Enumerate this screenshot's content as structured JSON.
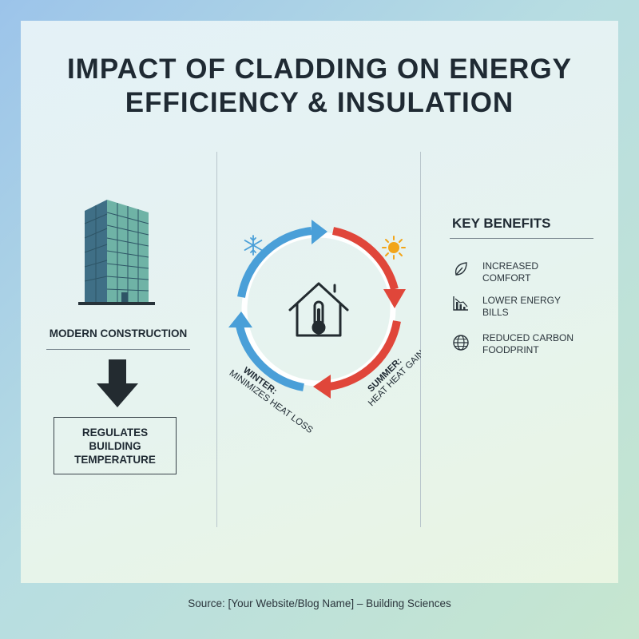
{
  "title": {
    "line1": "IMPACT OF CLADDING ON ENERGY",
    "line2": "EFFICIENCY & INSULATION"
  },
  "left": {
    "icon": "building-icon",
    "label": "MODERN CONSTRUCTION",
    "arrow_icon": "arrow-down-icon",
    "result": "REGULATES BUILDING TEMPERATURE"
  },
  "center": {
    "house_icon": "house-thermometer-icon",
    "winter_icon": "snowflake-icon",
    "summer_icon": "sun-icon",
    "winter_title": "WINTER:",
    "winter_desc": "MINIMIZES HEAT LOSS",
    "summer_title": "SUMMER:",
    "summer_desc": "HEAT HEAT GAIN"
  },
  "benefits": {
    "title": "KEY BENEFITS",
    "items": [
      {
        "icon": "leaf-icon",
        "label": "INCREASED COMFORT"
      },
      {
        "icon": "chart-down-icon",
        "label": "LOWER ENERGY BILLS"
      },
      {
        "icon": "globe-icon",
        "label": "REDUCED CARBON FOODPRINT"
      }
    ]
  },
  "source": "Source: [Your Website/Blog Name] – Building Sciences",
  "colors": {
    "cold": "#4a9fd8",
    "hot": "#e0463a",
    "ink": "#1f2a33",
    "sun": "#f2a51a"
  }
}
